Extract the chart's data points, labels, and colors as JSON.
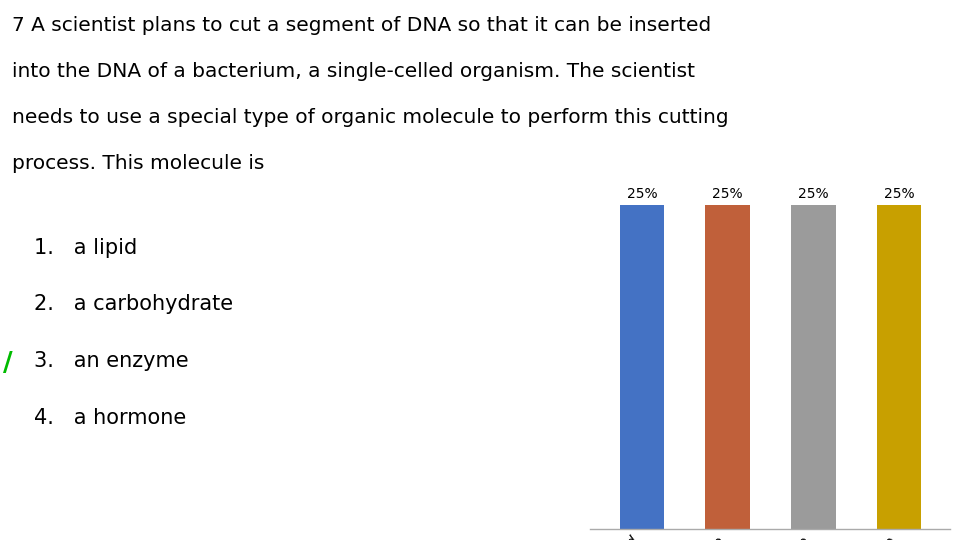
{
  "categories": [
    "a lipid",
    "a carbohydrate",
    "an enzyme",
    "a hormone"
  ],
  "values": [
    25,
    25,
    25,
    25
  ],
  "bar_colors": [
    "#4472C4",
    "#C0603A",
    "#9B9B9B",
    "#C8A000"
  ],
  "bar_labels": [
    "25%",
    "25%",
    "25%",
    "25%"
  ],
  "title_lines": [
    "7 A scientist plans to cut a segment of DNA so that it can be inserted",
    "into the DNA of a bacterium, a single-celled organism. The scientist",
    "needs to use a special type of organic molecule to perform this cutting",
    "process. This molecule is"
  ],
  "list_items": [
    "1.   a lipid",
    "2.   a carbohydrate",
    "3.   an enzyme",
    "4.   a hormone"
  ],
  "checkmark_item": 2,
  "background_color": "#FFFFFF",
  "text_color": "#000000",
  "ylim": [
    0,
    30
  ],
  "title_fontsize": 14.5,
  "list_fontsize": 15,
  "bar_label_fontsize": 10,
  "tick_label_fontsize": 10.5
}
